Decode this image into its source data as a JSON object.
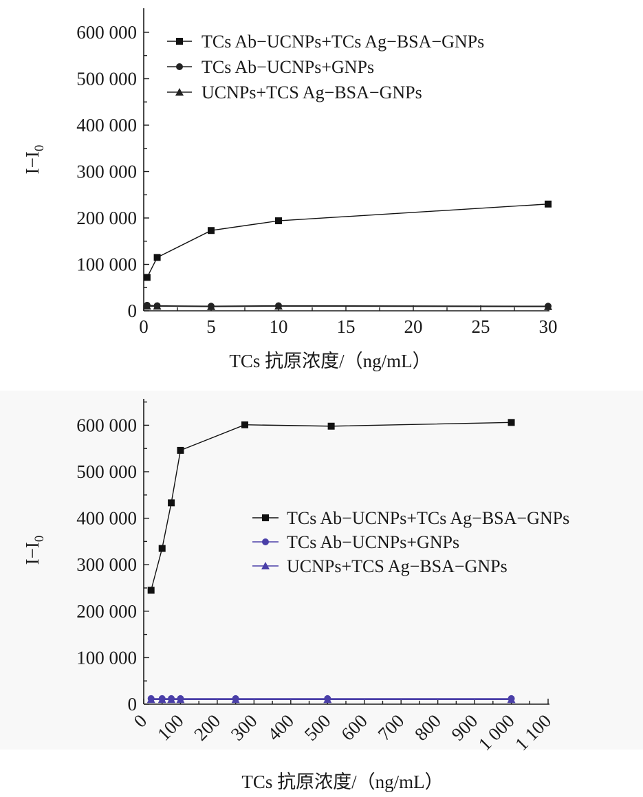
{
  "chart_data": [
    {
      "type": "line",
      "xlabel": "TCs 抗原浓度/（ng/mL）",
      "ylabel": "I−I",
      "ylabel_sub": "0",
      "xlim": [
        0,
        30
      ],
      "ylim": [
        0,
        600000
      ],
      "xticks": [
        0,
        5,
        10,
        15,
        20,
        25,
        30
      ],
      "xtick_labels": [
        "0",
        "5",
        "10",
        "15",
        "20",
        "25",
        "30"
      ],
      "yticks": [
        0,
        100000,
        200000,
        300000,
        400000,
        500000,
        600000
      ],
      "ytick_labels": [
        "0",
        "100 000",
        "200 000",
        "300 000",
        "400 000",
        "500 000",
        "600 000"
      ],
      "legend_position": "top-left",
      "series": [
        {
          "name": "TCs Ab−UCNPs+TCs Ag−BSA−GNPs",
          "marker": "square",
          "color": "#111111",
          "x": [
            0.25,
            1,
            5,
            10,
            30
          ],
          "y": [
            72000,
            115000,
            173000,
            194000,
            230000
          ]
        },
        {
          "name": "TCs Ab−UCNPs+GNPs",
          "marker": "circle",
          "color": "#222222",
          "x": [
            0.25,
            1,
            5,
            10,
            30
          ],
          "y": [
            12000,
            11000,
            10000,
            11000,
            10000
          ]
        },
        {
          "name": "UCNPs+TCS Ag−BSA−GNPs",
          "marker": "triangle",
          "color": "#222222",
          "x": [
            0.25,
            1,
            5,
            10,
            30
          ],
          "y": [
            10000,
            10000,
            9000,
            10000,
            9000
          ]
        }
      ]
    },
    {
      "type": "line",
      "xlabel": "TCs 抗原浓度/（ng/mL）",
      "ylabel": "I−I",
      "ylabel_sub": "0",
      "xlim": [
        0,
        1100
      ],
      "ylim": [
        0,
        650000
      ],
      "xticks": [
        0,
        100,
        200,
        300,
        400,
        500,
        600,
        700,
        800,
        900,
        1000,
        1100
      ],
      "xtick_labels": [
        "0",
        "100",
        "200",
        "300",
        "400",
        "500",
        "600",
        "700",
        "800",
        "900",
        "1 000",
        "1 100"
      ],
      "yticks": [
        0,
        100000,
        200000,
        300000,
        400000,
        500000,
        600000
      ],
      "ytick_labels": [
        "0",
        "100 000",
        "200 000",
        "300 000",
        "400 000",
        "500 000",
        "600 000"
      ],
      "legend_position": "center-right",
      "series": [
        {
          "name": "TCs Ab−UCNPs+TCs Ag−BSA−GNPs",
          "marker": "square",
          "color": "#111111",
          "x": [
            20,
            50,
            75,
            100,
            275,
            510,
            1000
          ],
          "y": [
            245000,
            335000,
            433000,
            546000,
            601000,
            598000,
            606000
          ]
        },
        {
          "name": "TCs Ab−UCNPs+GNPs",
          "marker": "circle",
          "color": "#4a3fa8",
          "x": [
            20,
            50,
            75,
            100,
            250,
            500,
            1000
          ],
          "y": [
            12000,
            12000,
            12000,
            12000,
            12000,
            12000,
            12000
          ]
        },
        {
          "name": "UCNPs+TCS Ag−BSA−GNPs",
          "marker": "triangle",
          "color": "#4a3fa8",
          "x": [
            20,
            50,
            75,
            100,
            250,
            500,
            1000
          ],
          "y": [
            10000,
            10000,
            10000,
            10000,
            10000,
            10000,
            10000
          ]
        }
      ]
    }
  ]
}
